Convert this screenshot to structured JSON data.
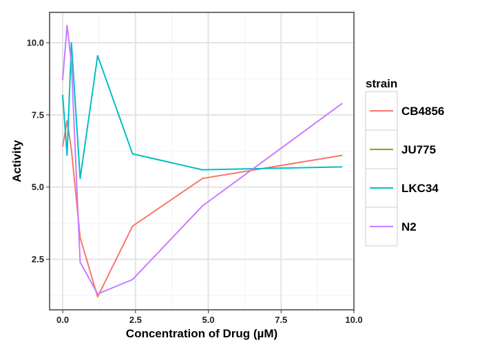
{
  "chart_data": {
    "type": "line",
    "title": "",
    "xlabel": "Concentration of Drug (µM)",
    "ylabel": "Activity",
    "xlim": [
      -0.45,
      10.0
    ],
    "ylim": [
      0.75,
      11.05
    ],
    "xticks": [
      0,
      2.5,
      5,
      7.5,
      10
    ],
    "xtick_labels": [
      "0.0",
      "2.5",
      "5.0",
      "7.5",
      "10.0"
    ],
    "yticks": [
      2.5,
      5,
      7.5,
      10
    ],
    "ytick_labels": [
      "2.5",
      "5.0",
      "7.5",
      "10.0"
    ],
    "grid": true,
    "legend": {
      "title": "strain",
      "position": "right"
    },
    "series": [
      {
        "name": "CB4856",
        "color": "#F8766D",
        "x": [
          0,
          0.15,
          0.3,
          0.6,
          1.2,
          2.4,
          4.8,
          9.6
        ],
        "y": [
          6.4,
          7.3,
          6.3,
          3.25,
          1.2,
          3.65,
          5.3,
          6.1
        ]
      },
      {
        "name": "JU775",
        "color": "#7CAE00",
        "x": [],
        "y": []
      },
      {
        "name": "LKC34",
        "color": "#00BFC4",
        "x": [
          0,
          0.15,
          0.3,
          0.6,
          1.2,
          2.4,
          4.8,
          9.6
        ],
        "y": [
          8.2,
          6.1,
          10.0,
          5.3,
          9.55,
          6.15,
          5.6,
          5.7
        ]
      },
      {
        "name": "N2",
        "color": "#C77CFF",
        "x": [
          0,
          0.15,
          0.3,
          0.6,
          1.2,
          2.4,
          4.8,
          9.6
        ],
        "y": [
          8.7,
          10.6,
          9.3,
          2.4,
          1.3,
          1.8,
          4.35,
          7.9
        ]
      }
    ]
  }
}
